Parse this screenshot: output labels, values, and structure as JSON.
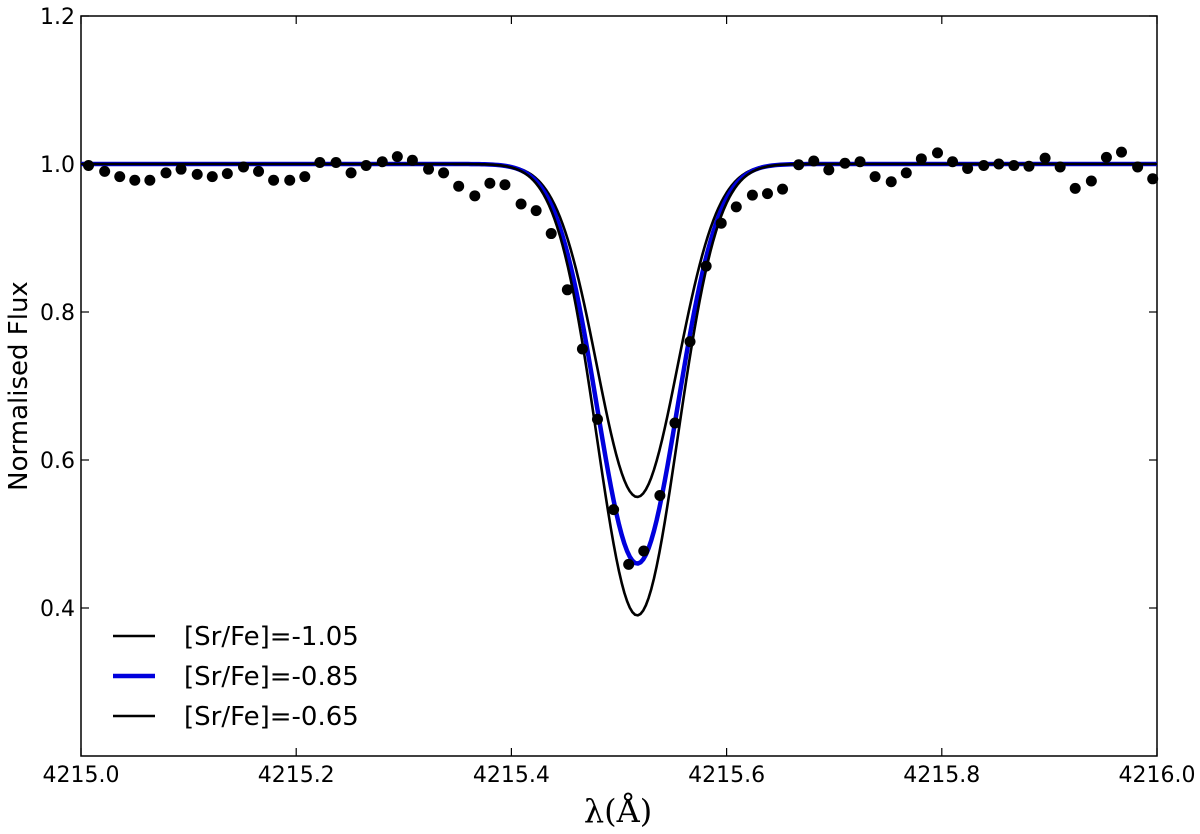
{
  "chart_data": {
    "type": "line",
    "xlabel": "λ(Å)",
    "ylabel": "Normalised Flux",
    "xlim": [
      4215.0,
      4216.0
    ],
    "ylim": [
      0.2,
      1.2
    ],
    "x_ticks": [
      4215.0,
      4215.2,
      4215.4,
      4215.6,
      4215.8,
      4216.0
    ],
    "x_tick_labels": [
      "4215.0",
      "4215.2",
      "4215.4",
      "4215.6",
      "4215.8",
      "4216.0"
    ],
    "y_ticks": [
      0.4,
      0.6,
      0.8,
      1.0,
      1.2
    ],
    "y_tick_labels": [
      "0.4",
      "0.6",
      "0.8",
      "1.0",
      "1.2"
    ],
    "grid": false,
    "legend_position": "bottom-left",
    "colors": {
      "black": "#000000",
      "blue": "#0000dd"
    },
    "series": [
      {
        "name": "[Sr/Fe]=-1.05",
        "color": "#000000",
        "line_width": "thin",
        "depth": 0.45,
        "center": 4215.517,
        "sigma": 0.0375
      },
      {
        "name": "[Sr/Fe]=-0.85",
        "color": "#0000dd",
        "line_width": "thick",
        "depth": 0.54,
        "center": 4215.517,
        "sigma": 0.0375
      },
      {
        "name": "[Sr/Fe]=-0.65",
        "color": "#000000",
        "line_width": "thin",
        "depth": 0.61,
        "center": 4215.517,
        "sigma": 0.0375
      }
    ],
    "observed_points": {
      "x": [
        4215.007,
        4215.022,
        4215.036,
        4215.05,
        4215.064,
        4215.079,
        4215.093,
        4215.108,
        4215.122,
        4215.136,
        4215.151,
        4215.165,
        4215.179,
        4215.194,
        4215.208,
        4215.222,
        4215.237,
        4215.251,
        4215.265,
        4215.28,
        4215.294,
        4215.308,
        4215.323,
        4215.337,
        4215.351,
        4215.366,
        4215.38,
        4215.394,
        4215.409,
        4215.423,
        4215.437,
        4215.452,
        4215.466,
        4215.48,
        4215.495,
        4215.509,
        4215.523,
        4215.538,
        4215.552,
        4215.566,
        4215.581,
        4215.595,
        4215.609,
        4215.624,
        4215.638,
        4215.652,
        4215.667,
        4215.681,
        4215.695,
        4215.71,
        4215.724,
        4215.738,
        4215.753,
        4215.767,
        4215.781,
        4215.796,
        4215.81,
        4215.824,
        4215.839,
        4215.853,
        4215.867,
        4215.881,
        4215.896,
        4215.91,
        4215.924,
        4215.939,
        4215.953,
        4215.967,
        4215.982,
        4215.996
      ],
      "y": [
        0.998,
        0.99,
        0.983,
        0.978,
        0.978,
        0.988,
        0.993,
        0.986,
        0.983,
        0.987,
        0.996,
        0.99,
        0.978,
        0.978,
        0.983,
        1.002,
        1.002,
        0.988,
        0.998,
        1.003,
        1.01,
        1.005,
        0.993,
        0.988,
        0.97,
        0.957,
        0.974,
        0.972,
        0.946,
        0.937,
        0.906,
        0.83,
        0.75,
        0.655,
        0.533,
        0.459,
        0.477,
        0.552,
        0.65,
        0.76,
        0.862,
        0.92,
        0.942,
        0.958,
        0.96,
        0.966,
        0.999,
        1.004,
        0.992,
        1.001,
        1.003,
        0.983,
        0.976,
        0.988,
        1.007,
        1.015,
        1.003,
        0.994,
        0.998,
        1.0,
        0.998,
        0.997,
        1.008,
        0.996,
        0.967,
        0.977,
        1.009,
        1.016,
        0.996,
        0.98
      ]
    }
  }
}
